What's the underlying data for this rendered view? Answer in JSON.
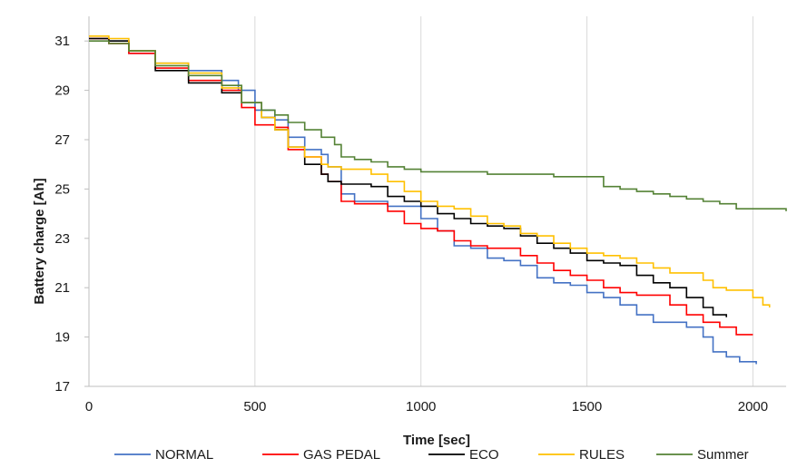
{
  "chart_data": {
    "type": "line",
    "xlabel": "Time [sec]",
    "ylabel": "Battery charge [Ah]",
    "xlim": [
      0,
      2100
    ],
    "ylim": [
      17,
      32
    ],
    "x_ticks": [
      0,
      500,
      1000,
      1500,
      2000
    ],
    "y_ticks": [
      17,
      19,
      21,
      23,
      25,
      27,
      29,
      31
    ],
    "grid": "vertical",
    "legend_position": "bottom",
    "series": [
      {
        "name": "NORMAL",
        "color": "#4472C4",
        "points": [
          [
            0,
            31.1
          ],
          [
            60,
            31.0
          ],
          [
            120,
            30.5
          ],
          [
            200,
            30.1
          ],
          [
            300,
            29.8
          ],
          [
            400,
            29.4
          ],
          [
            450,
            29.0
          ],
          [
            500,
            28.2
          ],
          [
            560,
            27.8
          ],
          [
            600,
            27.1
          ],
          [
            650,
            26.6
          ],
          [
            700,
            26.4
          ],
          [
            720,
            25.9
          ],
          [
            760,
            24.8
          ],
          [
            800,
            24.5
          ],
          [
            850,
            24.5
          ],
          [
            900,
            24.3
          ],
          [
            950,
            24.3
          ],
          [
            1000,
            23.8
          ],
          [
            1050,
            23.3
          ],
          [
            1100,
            22.7
          ],
          [
            1150,
            22.6
          ],
          [
            1200,
            22.2
          ],
          [
            1250,
            22.1
          ],
          [
            1300,
            21.9
          ],
          [
            1350,
            21.4
          ],
          [
            1400,
            21.2
          ],
          [
            1450,
            21.1
          ],
          [
            1500,
            20.8
          ],
          [
            1550,
            20.6
          ],
          [
            1600,
            20.3
          ],
          [
            1650,
            19.9
          ],
          [
            1700,
            19.6
          ],
          [
            1750,
            19.6
          ],
          [
            1800,
            19.4
          ],
          [
            1850,
            19.0
          ],
          [
            1880,
            18.4
          ],
          [
            1920,
            18.2
          ],
          [
            1960,
            18.0
          ],
          [
            2010,
            17.9
          ]
        ]
      },
      {
        "name": "GAS PEDAL",
        "color": "#FF0000",
        "points": [
          [
            0,
            31.1
          ],
          [
            60,
            30.9
          ],
          [
            120,
            30.5
          ],
          [
            200,
            29.9
          ],
          [
            300,
            29.4
          ],
          [
            400,
            29.0
          ],
          [
            460,
            28.3
          ],
          [
            500,
            27.6
          ],
          [
            560,
            27.5
          ],
          [
            600,
            26.6
          ],
          [
            650,
            26.3
          ],
          [
            700,
            25.6
          ],
          [
            720,
            25.3
          ],
          [
            760,
            24.5
          ],
          [
            800,
            24.4
          ],
          [
            850,
            24.4
          ],
          [
            900,
            24.1
          ],
          [
            950,
            23.6
          ],
          [
            1000,
            23.4
          ],
          [
            1050,
            23.3
          ],
          [
            1100,
            22.9
          ],
          [
            1150,
            22.7
          ],
          [
            1200,
            22.6
          ],
          [
            1250,
            22.6
          ],
          [
            1300,
            22.3
          ],
          [
            1350,
            22.0
          ],
          [
            1400,
            21.7
          ],
          [
            1450,
            21.5
          ],
          [
            1500,
            21.3
          ],
          [
            1550,
            21.0
          ],
          [
            1600,
            20.8
          ],
          [
            1650,
            20.7
          ],
          [
            1700,
            20.7
          ],
          [
            1750,
            20.3
          ],
          [
            1800,
            19.9
          ],
          [
            1850,
            19.6
          ],
          [
            1900,
            19.4
          ],
          [
            1950,
            19.1
          ],
          [
            2000,
            19.1
          ]
        ]
      },
      {
        "name": "ECO",
        "color": "#000000",
        "points": [
          [
            0,
            31.1
          ],
          [
            60,
            31.0
          ],
          [
            120,
            30.6
          ],
          [
            200,
            29.8
          ],
          [
            300,
            29.3
          ],
          [
            400,
            28.9
          ],
          [
            460,
            28.5
          ],
          [
            520,
            27.9
          ],
          [
            560,
            27.4
          ],
          [
            600,
            26.7
          ],
          [
            650,
            26.0
          ],
          [
            700,
            25.6
          ],
          [
            720,
            25.3
          ],
          [
            760,
            25.2
          ],
          [
            800,
            25.2
          ],
          [
            850,
            25.1
          ],
          [
            900,
            24.7
          ],
          [
            950,
            24.5
          ],
          [
            1000,
            24.3
          ],
          [
            1050,
            24.0
          ],
          [
            1100,
            23.8
          ],
          [
            1150,
            23.6
          ],
          [
            1200,
            23.5
          ],
          [
            1250,
            23.4
          ],
          [
            1300,
            23.1
          ],
          [
            1350,
            22.8
          ],
          [
            1400,
            22.6
          ],
          [
            1450,
            22.4
          ],
          [
            1500,
            22.1
          ],
          [
            1550,
            22.0
          ],
          [
            1600,
            21.9
          ],
          [
            1650,
            21.5
          ],
          [
            1700,
            21.2
          ],
          [
            1750,
            21.0
          ],
          [
            1800,
            20.6
          ],
          [
            1850,
            20.2
          ],
          [
            1880,
            19.9
          ],
          [
            1920,
            19.8
          ]
        ]
      },
      {
        "name": "RULES",
        "color": "#FFC000",
        "points": [
          [
            0,
            31.2
          ],
          [
            60,
            31.1
          ],
          [
            120,
            30.6
          ],
          [
            200,
            30.1
          ],
          [
            300,
            29.7
          ],
          [
            400,
            29.1
          ],
          [
            460,
            28.5
          ],
          [
            520,
            27.9
          ],
          [
            560,
            27.4
          ],
          [
            600,
            26.7
          ],
          [
            650,
            26.3
          ],
          [
            700,
            26.0
          ],
          [
            720,
            25.9
          ],
          [
            760,
            25.8
          ],
          [
            800,
            25.8
          ],
          [
            850,
            25.6
          ],
          [
            900,
            25.3
          ],
          [
            950,
            24.9
          ],
          [
            1000,
            24.5
          ],
          [
            1050,
            24.3
          ],
          [
            1100,
            24.2
          ],
          [
            1150,
            23.9
          ],
          [
            1200,
            23.6
          ],
          [
            1250,
            23.5
          ],
          [
            1300,
            23.2
          ],
          [
            1350,
            23.1
          ],
          [
            1400,
            22.8
          ],
          [
            1450,
            22.6
          ],
          [
            1500,
            22.4
          ],
          [
            1550,
            22.3
          ],
          [
            1600,
            22.2
          ],
          [
            1650,
            22.0
          ],
          [
            1700,
            21.8
          ],
          [
            1750,
            21.6
          ],
          [
            1800,
            21.6
          ],
          [
            1850,
            21.3
          ],
          [
            1880,
            21.0
          ],
          [
            1920,
            20.9
          ],
          [
            1960,
            20.9
          ],
          [
            2000,
            20.6
          ],
          [
            2030,
            20.3
          ],
          [
            2050,
            20.2
          ]
        ]
      },
      {
        "name": "Summer",
        "color": "#548235",
        "points": [
          [
            0,
            31.0
          ],
          [
            60,
            30.9
          ],
          [
            120,
            30.6
          ],
          [
            200,
            30.0
          ],
          [
            300,
            29.6
          ],
          [
            400,
            29.2
          ],
          [
            460,
            28.5
          ],
          [
            520,
            28.2
          ],
          [
            560,
            28.0
          ],
          [
            600,
            27.7
          ],
          [
            650,
            27.4
          ],
          [
            700,
            27.1
          ],
          [
            740,
            26.8
          ],
          [
            760,
            26.3
          ],
          [
            800,
            26.2
          ],
          [
            850,
            26.1
          ],
          [
            900,
            25.9
          ],
          [
            950,
            25.8
          ],
          [
            1000,
            25.7
          ],
          [
            1050,
            25.7
          ],
          [
            1100,
            25.7
          ],
          [
            1150,
            25.7
          ],
          [
            1200,
            25.6
          ],
          [
            1250,
            25.6
          ],
          [
            1300,
            25.6
          ],
          [
            1350,
            25.6
          ],
          [
            1400,
            25.5
          ],
          [
            1450,
            25.5
          ],
          [
            1500,
            25.5
          ],
          [
            1550,
            25.1
          ],
          [
            1600,
            25.0
          ],
          [
            1650,
            24.9
          ],
          [
            1700,
            24.8
          ],
          [
            1750,
            24.7
          ],
          [
            1800,
            24.6
          ],
          [
            1850,
            24.5
          ],
          [
            1900,
            24.4
          ],
          [
            1950,
            24.2
          ],
          [
            2000,
            24.2
          ],
          [
            2050,
            24.2
          ],
          [
            2100,
            24.1
          ]
        ]
      }
    ]
  }
}
